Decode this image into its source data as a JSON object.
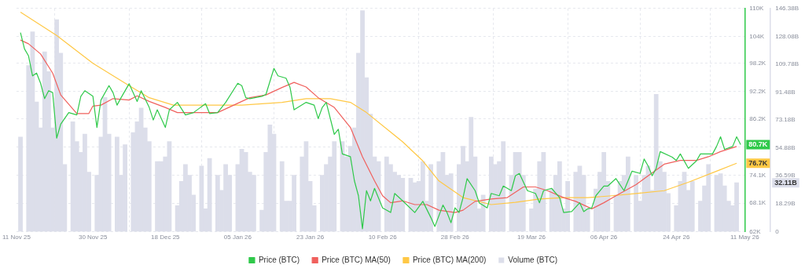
{
  "chart_data": {
    "type": "line",
    "xlim": [
      "2025-11-11",
      "2026-05-11"
    ],
    "xticks": [
      {
        "value": "2025-11-11",
        "label": "11 Nov 25"
      },
      {
        "value": "2025-11-30",
        "label": "30 Nov 25"
      },
      {
        "value": "2025-12-18",
        "label": "18 Dec 25"
      },
      {
        "value": "2026-01-05",
        "label": "05 Jan 26"
      },
      {
        "value": "2026-01-23",
        "label": "23 Jan 26"
      },
      {
        "value": "2026-02-10",
        "label": "10 Feb 26"
      },
      {
        "value": "2026-02-28",
        "label": "28 Feb 26"
      },
      {
        "value": "2026-03-19",
        "label": "19 Mar 26"
      },
      {
        "value": "2026-04-06",
        "label": "06 Apr 26"
      },
      {
        "value": "2026-04-24",
        "label": "24 Apr 26"
      },
      {
        "value": "2026-05-11",
        "label": "11 May 26"
      }
    ],
    "ylim": [
      62,
      110
    ],
    "yticks": [
      {
        "value": 62,
        "label": "62K"
      },
      {
        "value": 68.1,
        "label": "68.1K"
      },
      {
        "value": 74.1,
        "label": "74.1K"
      },
      {
        "value": 80.2,
        "label": null
      },
      {
        "value": 86.2,
        "label": "86.2K"
      },
      {
        "value": 92.2,
        "label": "92.2K"
      },
      {
        "value": 98.2,
        "label": "98.2K"
      },
      {
        "value": 104,
        "label": "104K"
      },
      {
        "value": 110,
        "label": "110K"
      }
    ],
    "y2lim": [
      0,
      146.38
    ],
    "y2ticks": [
      {
        "value": 0,
        "label": "0"
      },
      {
        "value": 18.29,
        "label": "18.29B"
      },
      {
        "value": 36.59,
        "label": "36.59B"
      },
      {
        "value": 54.88,
        "label": "54.88B"
      },
      {
        "value": 73.18,
        "label": "73.18B"
      },
      {
        "value": 91.48,
        "label": "91.48B"
      },
      {
        "value": 109.78,
        "label": "109.78B"
      },
      {
        "value": 128.08,
        "label": "128.08B"
      },
      {
        "value": 146.38,
        "label": "146.38B"
      }
    ],
    "grid": true,
    "legend": "bottom",
    "annotations": [
      {
        "text": "80.7K",
        "x": "2026-05-10",
        "y": 80.7
      },
      {
        "text": "76.7K",
        "x": "2026-05-09",
        "y": 76.7
      },
      "32.11B"
    ],
    "series": [
      {
        "name": "Price (BTC)",
        "color": "#2fc94a",
        "x": [
          "2025-11-12",
          "2025-11-13",
          "2025-11-14",
          "2025-11-15",
          "2025-11-16",
          "2025-11-17",
          "2025-11-18",
          "2025-11-19",
          "2025-11-20",
          "2025-11-21",
          "2025-11-22",
          "2025-11-24",
          "2025-11-26",
          "2025-11-27",
          "2025-11-28",
          "2025-11-30",
          "2025-12-01",
          "2025-12-02",
          "2025-12-04",
          "2025-12-05",
          "2025-12-06",
          "2025-12-07",
          "2025-12-09",
          "2025-12-11",
          "2025-12-12",
          "2025-12-14",
          "2025-12-15",
          "2025-12-16",
          "2025-12-18",
          "2025-12-19",
          "2025-12-21",
          "2025-12-23",
          "2025-12-25",
          "2025-12-28",
          "2025-12-29",
          "2025-12-31",
          "2026-01-02",
          "2026-01-05",
          "2026-01-06",
          "2026-01-07",
          "2026-01-08",
          "2026-01-11",
          "2026-01-12",
          "2026-01-14",
          "2026-01-15",
          "2026-01-17",
          "2026-01-18",
          "2026-01-19",
          "2026-01-22",
          "2026-01-24",
          "2026-01-25",
          "2026-01-26",
          "2026-01-27",
          "2026-01-29",
          "2026-01-30",
          "2026-01-31",
          "2026-02-02",
          "2026-02-03",
          "2026-02-04",
          "2026-02-05",
          "2026-02-06",
          "2026-02-07",
          "2026-02-08",
          "2026-02-10",
          "2026-02-12",
          "2026-02-13",
          "2026-02-15",
          "2026-02-18",
          "2026-02-20",
          "2026-02-22",
          "2026-02-23",
          "2026-02-25",
          "2026-02-26",
          "2026-02-27",
          "2026-02-28",
          "2026-03-01",
          "2026-03-02",
          "2026-03-03",
          "2026-03-05",
          "2026-03-06",
          "2026-03-08",
          "2026-03-09",
          "2026-03-11",
          "2026-03-12",
          "2026-03-14",
          "2026-03-15",
          "2026-03-16",
          "2026-03-18",
          "2026-03-20",
          "2026-03-21",
          "2026-03-22",
          "2026-03-24",
          "2026-03-26",
          "2026-03-27",
          "2026-03-29",
          "2026-03-31",
          "2026-04-01",
          "2026-04-02",
          "2026-04-03",
          "2026-04-04",
          "2026-04-06",
          "2026-04-07",
          "2026-04-09",
          "2026-04-11",
          "2026-04-13",
          "2026-04-15",
          "2026-04-16",
          "2026-04-17",
          "2026-04-18",
          "2026-04-19",
          "2026-04-20",
          "2026-04-23",
          "2026-04-24",
          "2026-04-25",
          "2026-04-27",
          "2026-04-29",
          "2026-04-30",
          "2026-05-03",
          "2026-05-04",
          "2026-05-05",
          "2026-05-06",
          "2026-05-08",
          "2026-05-09",
          "2026-05-10"
        ],
        "values": [
          104.8,
          101.3,
          99.8,
          95.5,
          96.1,
          93.9,
          90.6,
          92.3,
          91.9,
          82.1,
          85.1,
          87.6,
          87.1,
          91.1,
          92.3,
          91.1,
          84.4,
          90.3,
          93.4,
          91.9,
          89.2,
          90.8,
          93.8,
          90.0,
          92.3,
          88.7,
          86.0,
          88.2,
          84.4,
          88.2,
          89.8,
          87.1,
          87.6,
          89.5,
          87.4,
          87.6,
          89.8,
          93.9,
          93.4,
          90.8,
          90.6,
          91.1,
          91.5,
          97.1,
          95.5,
          95.0,
          93.0,
          88.2,
          89.8,
          89.2,
          86.3,
          88.7,
          89.8,
          82.9,
          84.0,
          78.7,
          78.1,
          72.9,
          69.7,
          62.6,
          70.8,
          68.6,
          71.3,
          67.1,
          66.1,
          70.2,
          68.6,
          66.1,
          68.5,
          65.0,
          63.1,
          67.7,
          66.1,
          63.9,
          67.1,
          66.1,
          69.3,
          73.4,
          70.8,
          68.2,
          67.1,
          70.2,
          69.7,
          71.8,
          70.8,
          74.0,
          74.5,
          70.8,
          70.2,
          68.2,
          70.8,
          71.3,
          69.3,
          66.1,
          66.3,
          68.2,
          66.3,
          66.9,
          67.1,
          69.7,
          71.8,
          71.8,
          73.4,
          70.8,
          75.0,
          74.5,
          77.6,
          76.1,
          74.0,
          75.6,
          79.2,
          78.0,
          77.3,
          78.7,
          75.6,
          77.2,
          78.7,
          78.7,
          80.3,
          82.4,
          79.7,
          80.3,
          82.4,
          80.7
        ]
      },
      {
        "name": "Price (BTC) MA(50)",
        "color": "#f0605d",
        "x": [
          "2025-11-12",
          "2025-11-14",
          "2025-11-17",
          "2025-11-20",
          "2025-11-22",
          "2025-11-26",
          "2025-11-29",
          "2025-11-30",
          "2025-12-02",
          "2025-12-05",
          "2025-12-09",
          "2025-12-11",
          "2025-12-14",
          "2025-12-18",
          "2025-12-21",
          "2025-12-26",
          "2025-12-31",
          "2026-01-04",
          "2026-01-08",
          "2026-01-12",
          "2026-01-16",
          "2026-01-19",
          "2026-01-22",
          "2026-01-25",
          "2026-01-29",
          "2026-02-02",
          "2026-02-05",
          "2026-02-08",
          "2026-02-10",
          "2026-02-12",
          "2026-02-15",
          "2026-02-18",
          "2026-02-21",
          "2026-02-24",
          "2026-02-28",
          "2026-03-02",
          "2026-03-05",
          "2026-03-09",
          "2026-03-13",
          "2026-03-17",
          "2026-03-20",
          "2026-03-23",
          "2026-03-27",
          "2026-03-30",
          "2026-04-01",
          "2026-04-03",
          "2026-04-06",
          "2026-04-09",
          "2026-04-14",
          "2026-04-17",
          "2026-04-21",
          "2026-04-25",
          "2026-04-29",
          "2026-05-02",
          "2026-05-05",
          "2026-05-09"
        ],
        "values": [
          103.2,
          102.4,
          100.2,
          96.1,
          91.4,
          87.4,
          87.4,
          89.0,
          89.2,
          90.6,
          90.3,
          91.2,
          90.0,
          88.7,
          87.6,
          87.6,
          87.6,
          89.2,
          90.8,
          91.4,
          93.0,
          94.1,
          93.1,
          90.8,
          88.7,
          84.4,
          78.1,
          72.9,
          69.7,
          68.2,
          68.6,
          67.8,
          67.8,
          66.6,
          66.1,
          66.6,
          68.5,
          69.0,
          69.3,
          71.6,
          71.6,
          70.8,
          69.3,
          68.5,
          67.7,
          66.9,
          68.2,
          69.7,
          72.1,
          74.0,
          76.5,
          77.3,
          77.3,
          78.1,
          79.2,
          80.3
        ]
      },
      {
        "name": "Price (BTC) MA(200)",
        "color": "#ffc845",
        "x": [
          "2025-11-12",
          "2025-11-21",
          "2025-11-30",
          "2025-12-09",
          "2025-12-14",
          "2025-12-20",
          "2025-12-28",
          "2026-01-06",
          "2026-01-16",
          "2026-01-22",
          "2026-01-28",
          "2026-02-02",
          "2026-02-06",
          "2026-02-15",
          "2026-02-20",
          "2026-02-24",
          "2026-03-02",
          "2026-03-09",
          "2026-03-15",
          "2026-03-21",
          "2026-03-27",
          "2026-04-02",
          "2026-04-08",
          "2026-04-14",
          "2026-04-21",
          "2026-04-27",
          "2026-05-04",
          "2026-05-09"
        ],
        "values": [
          109.2,
          104.2,
          98.2,
          93.4,
          90.8,
          89.2,
          89.2,
          89.2,
          89.8,
          90.6,
          90.6,
          89.8,
          87.6,
          81.3,
          77.2,
          72.9,
          69.3,
          67.8,
          68.3,
          69.0,
          69.3,
          69.3,
          69.7,
          70.2,
          70.8,
          72.6,
          75.0,
          76.7
        ]
      },
      {
        "name": "Volume (BTC)",
        "type": "bar",
        "axis": "y2",
        "color": "#dcdeea",
        "x": [
          "2025-11-12",
          "2025-11-14",
          "2025-11-15",
          "2025-11-16",
          "2025-11-17",
          "2025-11-18",
          "2025-11-19",
          "2025-11-20",
          "2025-11-21",
          "2025-11-22",
          "2025-11-23",
          "2025-11-25",
          "2025-11-26",
          "2025-11-27",
          "2025-11-28",
          "2025-11-29",
          "2025-12-01",
          "2025-12-02",
          "2025-12-03",
          "2025-12-04",
          "2025-12-06",
          "2025-12-07",
          "2025-12-08",
          "2025-12-10",
          "2025-12-11",
          "2025-12-12",
          "2025-12-13",
          "2025-12-14",
          "2025-12-16",
          "2025-12-17",
          "2025-12-18",
          "2025-12-19",
          "2025-12-21",
          "2025-12-22",
          "2025-12-23",
          "2025-12-24",
          "2025-12-25",
          "2025-12-27",
          "2025-12-28",
          "2025-12-29",
          "2025-12-31",
          "2026-01-01",
          "2026-01-02",
          "2026-01-03",
          "2026-01-05",
          "2026-01-06",
          "2026-01-07",
          "2026-01-08",
          "2026-01-09",
          "2026-01-11",
          "2026-01-12",
          "2026-01-13",
          "2026-01-14",
          "2026-01-16",
          "2026-01-17",
          "2026-01-18",
          "2026-01-19",
          "2026-01-21",
          "2026-01-22",
          "2026-01-23",
          "2026-01-24",
          "2026-01-26",
          "2026-01-27",
          "2026-01-28",
          "2026-01-29",
          "2026-01-31",
          "2026-02-01",
          "2026-02-02",
          "2026-02-03",
          "2026-02-04",
          "2026-02-05",
          "2026-02-06",
          "2026-02-07",
          "2026-02-08",
          "2026-02-09",
          "2026-02-11",
          "2026-02-12",
          "2026-02-13",
          "2026-02-14",
          "2026-02-15",
          "2026-02-17",
          "2026-02-18",
          "2026-02-19",
          "2026-02-20",
          "2026-02-21",
          "2026-02-22",
          "2026-02-24",
          "2026-02-25",
          "2026-02-26",
          "2026-02-27",
          "2026-03-01",
          "2026-03-02",
          "2026-03-03",
          "2026-03-04",
          "2026-03-05",
          "2026-03-06",
          "2026-03-07",
          "2026-03-09",
          "2026-03-10",
          "2026-03-11",
          "2026-03-12",
          "2026-03-14",
          "2026-03-15",
          "2026-03-16",
          "2026-03-17",
          "2026-03-19",
          "2026-03-20",
          "2026-03-21",
          "2026-03-22",
          "2026-03-24",
          "2026-03-25",
          "2026-03-26",
          "2026-03-27",
          "2026-03-28",
          "2026-03-30",
          "2026-03-31",
          "2026-04-01",
          "2026-04-02",
          "2026-04-04",
          "2026-04-05",
          "2026-04-06",
          "2026-04-07",
          "2026-04-09",
          "2026-04-10",
          "2026-04-11",
          "2026-04-12",
          "2026-04-14",
          "2026-04-15",
          "2026-04-16",
          "2026-04-17",
          "2026-04-18",
          "2026-04-19",
          "2026-04-20",
          "2026-04-21",
          "2026-04-22",
          "2026-04-24",
          "2026-04-25",
          "2026-04-26",
          "2026-04-27",
          "2026-04-28",
          "2026-04-30",
          "2026-05-01",
          "2026-05-02",
          "2026-05-04",
          "2026-05-05",
          "2026-05-06",
          "2026-05-07",
          "2026-05-08",
          "2026-05-09"
        ],
        "values": [
          62,
          109,
          131,
          85,
          68,
          118,
          105,
          68,
          139,
          117,
          44,
          72,
          59,
          52,
          64,
          39,
          37,
          62,
          88,
          64,
          62,
          37,
          57,
          65,
          72,
          81,
          68,
          59,
          46,
          46,
          49,
          59,
          17,
          33,
          44,
          37,
          24,
          43,
          15,
          48,
          37,
          27,
          44,
          37,
          44,
          54,
          52,
          39,
          37,
          14,
          52,
          70,
          64,
          46,
          20,
          20,
          37,
          49,
          59,
          33,
          17,
          37,
          44,
          49,
          59,
          59,
          49,
          56,
          68,
          117,
          145,
          101,
          77,
          49,
          46,
          49,
          44,
          39,
          37,
          35,
          35,
          32,
          33,
          46,
          20,
          44,
          46,
          52,
          37,
          38,
          44,
          56,
          46,
          75,
          49,
          15,
          24,
          49,
          44,
          46,
          59,
          37,
          52,
          52,
          37,
          15,
          28,
          46,
          52,
          28,
          37,
          46,
          15,
          33,
          39,
          43,
          37,
          15,
          28,
          39,
          52,
          33,
          24,
          33,
          37,
          49,
          37,
          20,
          37,
          43,
          27,
          90,
          46,
          39,
          25,
          17,
          33,
          39,
          27,
          33,
          20,
          30,
          44,
          37,
          38,
          30,
          20,
          17,
          32
        ]
      }
    ]
  }
}
